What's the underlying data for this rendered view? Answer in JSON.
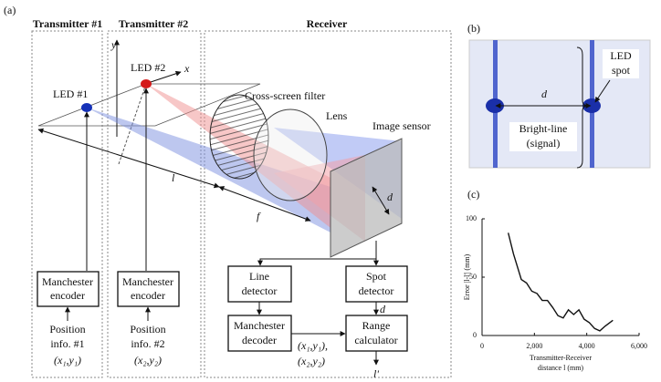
{
  "panels": {
    "a": "(a)",
    "b": "(b)",
    "c": "(c)"
  },
  "transmitter1": {
    "title": "Transmitter #1",
    "led": "LED #1",
    "encoder": [
      "Manchester",
      "encoder"
    ],
    "position": [
      "Position",
      "info. #1",
      "(x₁,y₁)"
    ]
  },
  "transmitter2": {
    "title": "Transmitter #2",
    "led": "LED #2",
    "encoder": [
      "Manchester",
      "encoder"
    ],
    "position": [
      "Position",
      "info. #2",
      "(x₂,y₂)"
    ],
    "axis_x": "x",
    "axis_y": "y"
  },
  "receiver": {
    "title": "Receiver",
    "filter": "Cross-screen filter",
    "lens": "Lens",
    "sensor": "Image sensor",
    "distance_l": "l",
    "focal_f": "f",
    "spot_d": "d",
    "line_detector": [
      "Line",
      "detector"
    ],
    "spot_detector": [
      "Spot",
      "detector"
    ],
    "decoder": [
      "Manchester",
      "decoder"
    ],
    "calculator": [
      "Range",
      "calculator"
    ],
    "d_out": "d",
    "coords": [
      "(x₁,y₁),",
      "(x₂,y₂)"
    ],
    "output": "l'"
  },
  "image": {
    "led_spot": [
      "LED",
      "spot"
    ],
    "d": "d",
    "bright_line": [
      "Bright-line",
      "(signal)"
    ]
  },
  "chart_data": {
    "type": "line",
    "ylabel": "Error |l-l'| (mm)",
    "xlabel": [
      "Transmitter-Receiver",
      "distance l (mm)"
    ],
    "x": [
      1000,
      1200,
      1500,
      1700,
      1900,
      2100,
      2300,
      2500,
      2700,
      2900,
      3100,
      3300,
      3500,
      3700,
      3900,
      4100,
      4300,
      4500,
      4700,
      5000
    ],
    "values": [
      88,
      70,
      48,
      45,
      38,
      36,
      30,
      30,
      24,
      17,
      15,
      22,
      18,
      22,
      14,
      11,
      6,
      4,
      8,
      13
    ],
    "color": "#111111",
    "xlim": [
      0,
      6000
    ],
    "ylim": [
      0,
      100
    ],
    "xticks": [
      0,
      {
        "value": 2000,
        "label": "2,000"
      },
      {
        "value": 4000,
        "label": "4,000"
      },
      {
        "value": 6000,
        "label": "6,000"
      }
    ],
    "yticks": [
      0,
      50,
      100
    ]
  }
}
